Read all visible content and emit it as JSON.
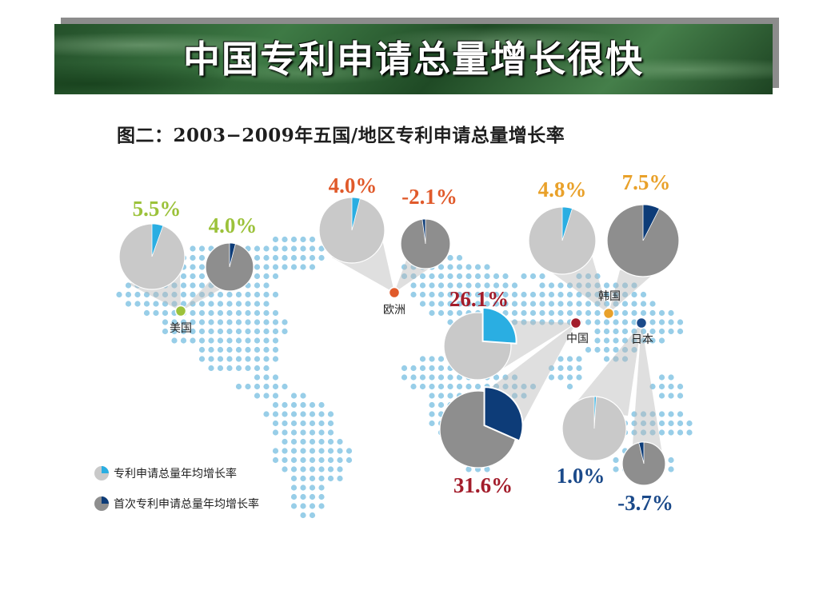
{
  "slide": {
    "banner_title": "中国专利申请总量增长很快",
    "figure_title": "图二：2003−2009年五国/地区专利申请总量增长率"
  },
  "colors": {
    "dot": "#86c5e4",
    "pie_light": "#c9c9c9",
    "pie_dark": "#8e8e8e",
    "slice_total": "#2aaee2",
    "slice_first": "#0d3c78",
    "us_label": "#9cc23b",
    "europe_label": "#e05a2b",
    "korea_label": "#e9a12a",
    "china_label": "#a31d2b",
    "japan_label": "#1b4a8a"
  },
  "chart_data": {
    "type": "pie",
    "title": "图二：2003−2009年五国/地区专利申请总量增长率",
    "legend": [
      "专利申请总量年均增长率",
      "首次专利申请总量年均增长率"
    ],
    "legend_placement": "bottom-left",
    "series": [
      {
        "name": "专利申请总量年均增长率",
        "values": [
          5.5,
          4.0,
          4.8,
          26.1,
          1.0
        ]
      },
      {
        "name": "首次专利申请总量年均增长率",
        "values": [
          4.0,
          -2.1,
          7.5,
          31.6,
          -3.7
        ]
      }
    ],
    "categories": [
      "美国",
      "欧洲",
      "韩国",
      "中国",
      "日本"
    ],
    "regions": [
      {
        "name": "美国",
        "total_label": "5.5%",
        "first_label": "4.0%",
        "total": 5.5,
        "first": 4.0
      },
      {
        "name": "欧洲",
        "total_label": "4.0%",
        "first_label": "-2.1%",
        "total": 4.0,
        "first": -2.1
      },
      {
        "name": "韩国",
        "total_label": "4.8%",
        "first_label": "7.5%",
        "total": 4.8,
        "first": 7.5
      },
      {
        "name": "中国",
        "total_label": "26.1%",
        "first_label": "31.6%",
        "total": 26.1,
        "first": 31.6
      },
      {
        "name": "日本",
        "total_label": "1.0%",
        "first_label": "-3.7%",
        "total": 1.0,
        "first": -3.7
      }
    ]
  }
}
